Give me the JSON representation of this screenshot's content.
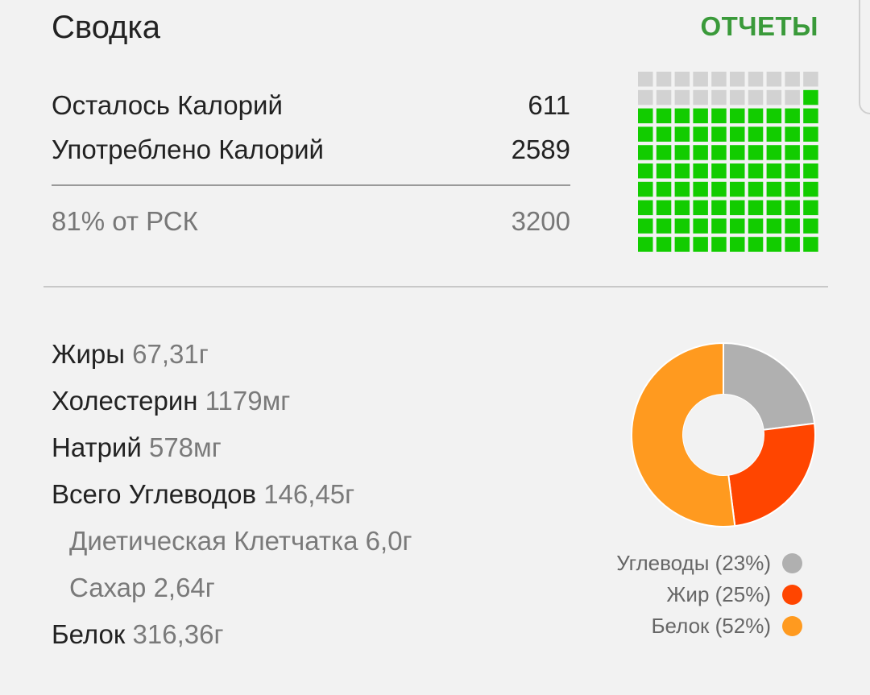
{
  "header": {
    "title": "Сводка",
    "reports_label": "ОТЧЕТЫ"
  },
  "calories": {
    "remaining_label": "Осталось Калорий",
    "remaining_value": "611",
    "consumed_label": "Употреблено Калорий",
    "consumed_value": "2589",
    "percent_label": "81% от РСК",
    "goal_value": "3200"
  },
  "waffle": {
    "filled_cells": 81,
    "total_cells": 100,
    "filled_color": "#12cc00",
    "empty_color": "#d2d2d2"
  },
  "nutrients": [
    {
      "label": "Жиры",
      "value": "67,31г",
      "sub": false
    },
    {
      "label": "Холестерин",
      "value": "1179мг",
      "sub": false
    },
    {
      "label": "Натрий",
      "value": "578мг",
      "sub": false
    },
    {
      "label": "Всего Углеводов",
      "value": "146,45г",
      "sub": false
    },
    {
      "label": "Диетическая Клетчатка",
      "value": "6,0г",
      "sub": true
    },
    {
      "label": "Сахар",
      "value": "2,64г",
      "sub": true
    },
    {
      "label": "Белок",
      "value": "316,36г",
      "sub": false
    }
  ],
  "chart_data": {
    "type": "pie",
    "categories": [
      "Углеводы",
      "Жир",
      "Белок"
    ],
    "values": [
      23,
      25,
      52
    ],
    "colors": [
      "#b0b0b0",
      "#ff4500",
      "#ff9a1f"
    ],
    "legend": [
      "Углеводы (23%)",
      "Жир (25%)",
      "Белок (52%)"
    ],
    "legend_position": "bottom-right"
  }
}
